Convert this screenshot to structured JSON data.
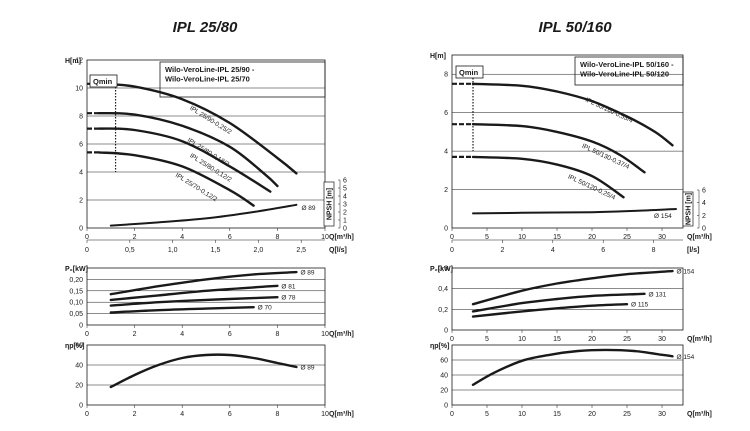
{
  "colors": {
    "ink": "#1a1a1a",
    "background": "#ffffff"
  },
  "chart_data": [
    {
      "type": "line",
      "title": "IPL 25/80",
      "legend": [
        "Wilo-VeroLine-IPL 25/90 -",
        "Wilo-VeroLine-IPL 25/70"
      ],
      "qmin_label": "Qmin",
      "head": {
        "ylabel": "H[m]",
        "xlabel": "Q[m³/h]",
        "xlim": [
          0,
          10
        ],
        "ylim": [
          0,
          12
        ],
        "xticks": [
          "0",
          "2",
          "4",
          "6",
          "8",
          "10"
        ],
        "yticks": [
          "0",
          "2",
          "4",
          "6",
          "8",
          "10",
          "12"
        ],
        "qmin_x": 1.2,
        "series": [
          {
            "name": "IPL 25/90-0,25/2",
            "x": [
              0.5,
              2,
              4,
              6,
              8,
              8.8
            ],
            "y": [
              10.3,
              10.1,
              9.2,
              7.5,
              5.0,
              3.9
            ]
          },
          {
            "name": "IPL 25/80-0,18/2",
            "x": [
              0.5,
              2,
              4,
              6,
              7.5,
              8.0
            ],
            "y": [
              8.2,
              8.1,
              7.3,
              5.8,
              3.8,
              3.0
            ]
          },
          {
            "name": "IPL 25/80-0,12/2",
            "x": [
              0.5,
              2,
              4,
              6,
              7.7
            ],
            "y": [
              7.1,
              7.0,
              6.2,
              4.4,
              2.6
            ]
          },
          {
            "name": "IPL 25/70-0,12/2",
            "x": [
              0.5,
              2,
              4,
              6,
              7.0
            ],
            "y": [
              5.4,
              5.2,
              4.4,
              2.7,
              1.6
            ]
          }
        ],
        "npsh": {
          "label": "NPSH [m]",
          "ticks": [
            "0",
            "1",
            "2",
            "3",
            "4",
            "5",
            "6"
          ],
          "series": [
            {
              "name": "Ø 89",
              "x": [
                1,
                3,
                5,
                7,
                8.8
              ],
              "y": [
                0.3,
                0.7,
                1.2,
                2.0,
                2.9
              ]
            }
          ]
        },
        "ls_axis": {
          "label": "Q[l/s]",
          "ticks": [
            "0",
            "0,5",
            "1,0",
            "1,5",
            "2,0",
            "2,5"
          ],
          "factor": 3.6
        }
      },
      "power": {
        "ylabel": "P₂[kW]",
        "xlabel": "Q[m³/h]",
        "xlim": [
          0,
          10
        ],
        "ylim": [
          0,
          0.25
        ],
        "xticks": [
          "0",
          "2",
          "4",
          "6",
          "8",
          "10"
        ],
        "yticks": [
          "0",
          "0,05",
          "0,10",
          "0,15",
          "0,20"
        ],
        "series": [
          {
            "name": "Ø 89",
            "x": [
              1,
              3,
              5,
              7,
              8.8
            ],
            "y": [
              0.135,
              0.17,
              0.2,
              0.222,
              0.232
            ]
          },
          {
            "name": "Ø 81",
            "x": [
              1,
              3,
              5,
              7,
              8.0
            ],
            "y": [
              0.11,
              0.13,
              0.15,
              0.165,
              0.172
            ]
          },
          {
            "name": "Ø 78",
            "x": [
              1,
              3,
              5,
              7,
              8.0
            ],
            "y": [
              0.085,
              0.1,
              0.11,
              0.118,
              0.122
            ]
          },
          {
            "name": "Ø 70",
            "x": [
              1,
              3,
              5,
              7.0
            ],
            "y": [
              0.055,
              0.065,
              0.072,
              0.078
            ]
          }
        ]
      },
      "efficiency": {
        "ylabel": "ηp[%]",
        "xlabel": "Q[m³/h]",
        "xlim": [
          0,
          10
        ],
        "ylim": [
          0,
          60
        ],
        "xticks": [
          "0",
          "2",
          "4",
          "6",
          "8",
          "10"
        ],
        "yticks": [
          "0",
          "20",
          "40",
          "60"
        ],
        "series": [
          {
            "name": "Ø 89",
            "x": [
              1,
              2,
              3,
              4,
              5,
              6,
              7,
              8,
              8.8
            ],
            "y": [
              18,
              30,
              40,
              47,
              50,
              50,
              47,
              42,
              38
            ]
          }
        ]
      }
    },
    {
      "type": "line",
      "title": "IPL 50/160",
      "legend": [
        "Wilo-VeroLine-IPL 50/160 -",
        "Wilo-VeroLine-IPL 50/120"
      ],
      "qmin_label": "Qmin",
      "head": {
        "ylabel": "H[m]",
        "xlabel": "Q[m³/h]",
        "xlim": [
          0,
          33
        ],
        "ylim": [
          0,
          9
        ],
        "xticks": [
          "0",
          "5",
          "10",
          "15",
          "20",
          "25",
          "30"
        ],
        "yticks": [
          "0",
          "2",
          "4",
          "6",
          "8"
        ],
        "qmin_x": 3,
        "series": [
          {
            "name": "IPL 50/160-0,55/4",
            "x": [
              3,
              10,
              15,
              20,
              25,
              29,
              31.5
            ],
            "y": [
              7.5,
              7.4,
              7.1,
              6.6,
              5.8,
              5.0,
              4.3
            ]
          },
          {
            "name": "IPL 50/130-0,37/4",
            "x": [
              3,
              10,
              15,
              20,
              24,
              27.5
            ],
            "y": [
              5.4,
              5.3,
              5.0,
              4.5,
              3.8,
              2.9
            ]
          },
          {
            "name": "IPL 50/120-0,25/4",
            "x": [
              3,
              10,
              15,
              20,
              24.5
            ],
            "y": [
              3.7,
              3.6,
              3.3,
              2.7,
              1.6
            ]
          }
        ],
        "npsh": {
          "label": "NPSH [m]",
          "ticks": [
            "0",
            "2",
            "4",
            "6"
          ],
          "series": [
            {
              "name": "Ø 154",
              "x": [
                3,
                10,
                20,
                26,
                32
              ],
              "y": [
                2.3,
                2.4,
                2.5,
                2.7,
                3.0
              ]
            }
          ]
        },
        "ls_axis": {
          "label": "[l/s]",
          "ticks": [
            "0",
            "2",
            "4",
            "6",
            "8"
          ],
          "factor": 3.6
        }
      },
      "power": {
        "ylabel": "P₂[kW]",
        "xlabel": "Q[m³/h]",
        "xlim": [
          0,
          33
        ],
        "ylim": [
          0,
          0.6
        ],
        "xticks": [
          "0",
          "5",
          "10",
          "15",
          "20",
          "25",
          "30"
        ],
        "yticks": [
          "0",
          "0,2",
          "0,4",
          "0,6"
        ],
        "series": [
          {
            "name": "Ø 154",
            "x": [
              3,
              10,
              15,
              20,
              25,
              31.5
            ],
            "y": [
              0.25,
              0.38,
              0.45,
              0.5,
              0.54,
              0.57
            ]
          },
          {
            "name": "Ø 131",
            "x": [
              3,
              10,
              15,
              20,
              27.5
            ],
            "y": [
              0.18,
              0.26,
              0.3,
              0.33,
              0.35
            ]
          },
          {
            "name": "Ø 115",
            "x": [
              3,
              10,
              15,
              20,
              25.0
            ],
            "y": [
              0.13,
              0.18,
              0.21,
              0.235,
              0.25
            ]
          }
        ]
      },
      "efficiency": {
        "ylabel": "ηp[%]",
        "xlabel": "Q[m³/h]",
        "xlim": [
          0,
          33
        ],
        "ylim": [
          0,
          80
        ],
        "xticks": [
          "0",
          "5",
          "10",
          "15",
          "20",
          "25",
          "30"
        ],
        "yticks": [
          "0",
          "20",
          "40",
          "60"
        ],
        "series": [
          {
            "name": "Ø 154",
            "x": [
              3,
              6,
              10,
              14,
              18,
              22,
              26,
              30,
              31.5
            ],
            "y": [
              27,
              43,
              59,
              67,
              72,
              73.5,
              72,
              67,
              65
            ]
          }
        ]
      }
    }
  ]
}
